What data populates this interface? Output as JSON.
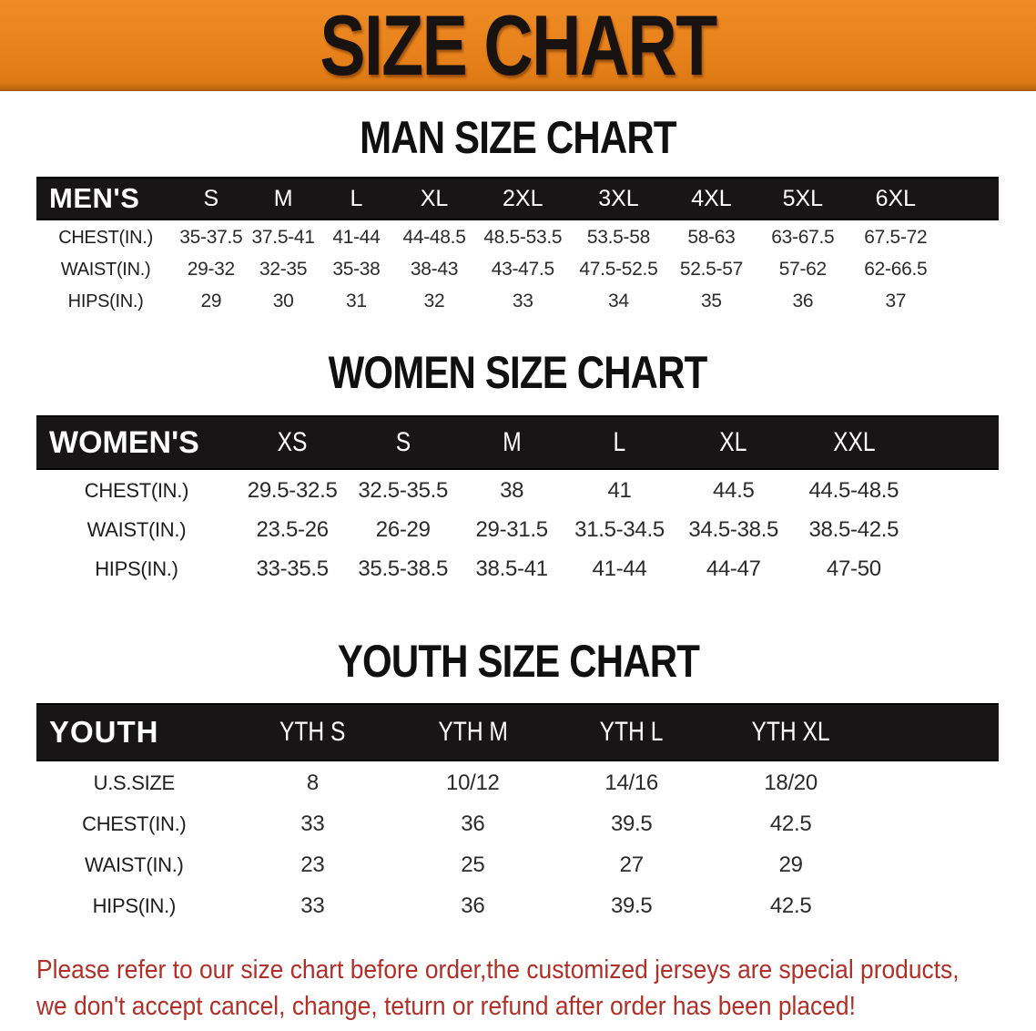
{
  "banner": {
    "title": "SIZE CHART",
    "bg_color": "#e8821c",
    "text_color": "#181310"
  },
  "sections": [
    {
      "heading": "MAN SIZE CHART",
      "table": {
        "label": "MEN'S",
        "columns": [
          "S",
          "M",
          "L",
          "XL",
          "2XL",
          "3XL",
          "4XL",
          "5XL",
          "6XL"
        ],
        "rows": [
          {
            "label": "CHEST(IN.)",
            "values": [
              "35-37.5",
              "37.5-41",
              "41-44",
              "44-48.5",
              "48.5-53.5",
              "53.5-58",
              "58-63",
              "63-67.5",
              "67.5-72"
            ]
          },
          {
            "label": "WAIST(IN.)",
            "values": [
              "29-32",
              "32-35",
              "35-38",
              "38-43",
              "43-47.5",
              "47.5-52.5",
              "52.5-57",
              "57-62",
              "62-66.5"
            ]
          },
          {
            "label": "HIPS(IN.)",
            "values": [
              "29",
              "30",
              "31",
              "32",
              "33",
              "34",
              "35",
              "36",
              "37"
            ]
          }
        ]
      }
    },
    {
      "heading": "WOMEN SIZE CHART",
      "table": {
        "label": "WOMEN'S",
        "columns": [
          "XS",
          "S",
          "M",
          "L",
          "XL",
          "XXL"
        ],
        "rows": [
          {
            "label": "CHEST(IN.)",
            "values": [
              "29.5-32.5",
              "32.5-35.5",
              "38",
              "41",
              "44.5",
              "44.5-48.5"
            ]
          },
          {
            "label": "WAIST(IN.)",
            "values": [
              "23.5-26",
              "26-29",
              "29-31.5",
              "31.5-34.5",
              "34.5-38.5",
              "38.5-42.5"
            ]
          },
          {
            "label": "HIPS(IN.)",
            "values": [
              "33-35.5",
              "35.5-38.5",
              "38.5-41",
              "41-44",
              "44-47",
              "47-50"
            ]
          }
        ]
      }
    },
    {
      "heading": "YOUTH SIZE CHART",
      "table": {
        "label": "YOUTH",
        "columns": [
          "YTH S",
          "YTH M",
          "YTH L",
          "YTH XL"
        ],
        "rows": [
          {
            "label": "U.S.SIZE",
            "values": [
              "8",
              "10/12",
              "14/16",
              "18/20"
            ]
          },
          {
            "label": "CHEST(IN.)",
            "values": [
              "33",
              "36",
              "39.5",
              "42.5"
            ]
          },
          {
            "label": "WAIST(IN.)",
            "values": [
              "23",
              "25",
              "27",
              "29"
            ]
          },
          {
            "label": "HIPS(IN.)",
            "values": [
              "33",
              "36",
              "39.5",
              "42.5"
            ]
          }
        ]
      }
    }
  ],
  "disclaimer": {
    "line1": "Please refer to our size chart before order,the customized jerseys are special products,",
    "line2": "we don't accept cancel, change, teturn or refund after order has been placed!",
    "color": "#b03028"
  },
  "colors": {
    "band_background": "#171515",
    "row_gray": "#e1e2e3",
    "row_white": "#ffffff"
  }
}
